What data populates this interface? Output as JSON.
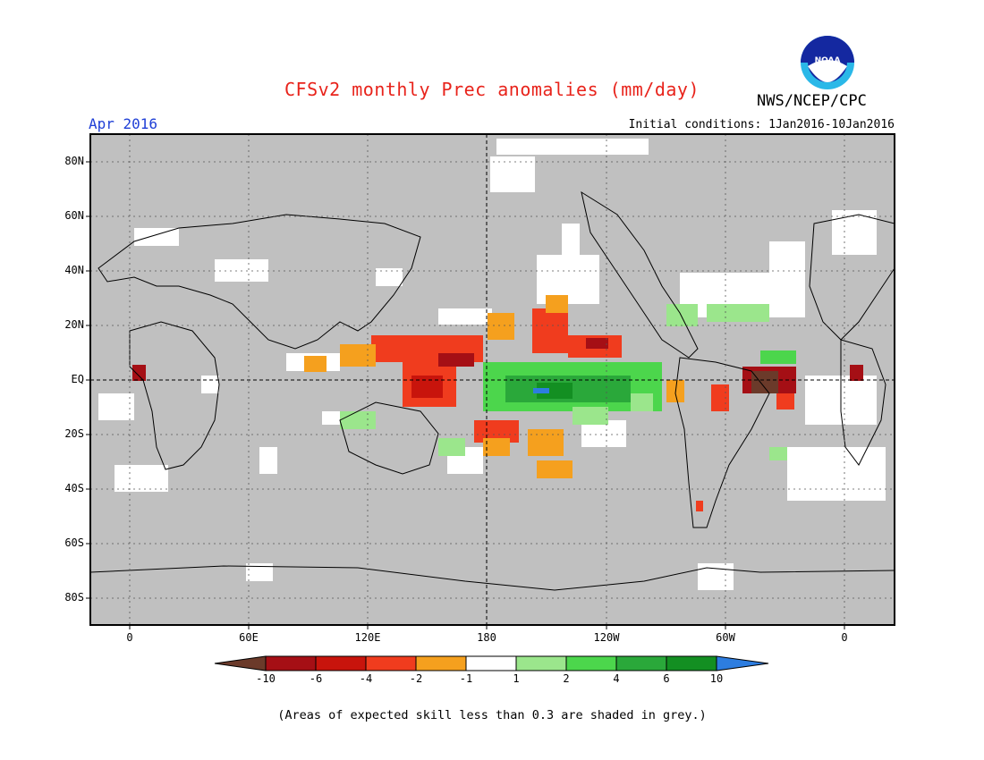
{
  "header": {
    "title": "CFSv2 monthly Prec anomalies (mm/day)",
    "org": "NWS/NCEP/CPC",
    "logo_text": "NOAA",
    "month": "Apr 2016",
    "initial_conditions": "Initial conditions: 1Jan2016-10Jan2016"
  },
  "axes": {
    "y_ticks": [
      "80N",
      "60N",
      "40N",
      "20N",
      "EQ",
      "20S",
      "40S",
      "60S",
      "80S"
    ],
    "x_ticks": [
      "0",
      "60E",
      "120E",
      "180",
      "120W",
      "60W",
      "0"
    ]
  },
  "colorbar": {
    "labels": [
      "-10",
      "-6",
      "-4",
      "-2",
      "-1",
      "1",
      "2",
      "4",
      "6",
      "10"
    ],
    "colors": [
      "#6b3a2a",
      "#a50f15",
      "#c8140c",
      "#f03c1e",
      "#f5a01e",
      "#ffffff",
      "#9be68c",
      "#4cd64c",
      "#2aa83a",
      "#138f22",
      "#2d7de0"
    ]
  },
  "footnote": "(Areas of expected skill less than 0.3 are shaded in grey.)",
  "colors": {
    "grey_mask": "#c0c0c0",
    "title_red": "#e8231b",
    "month_blue": "#1f3fd6"
  }
}
